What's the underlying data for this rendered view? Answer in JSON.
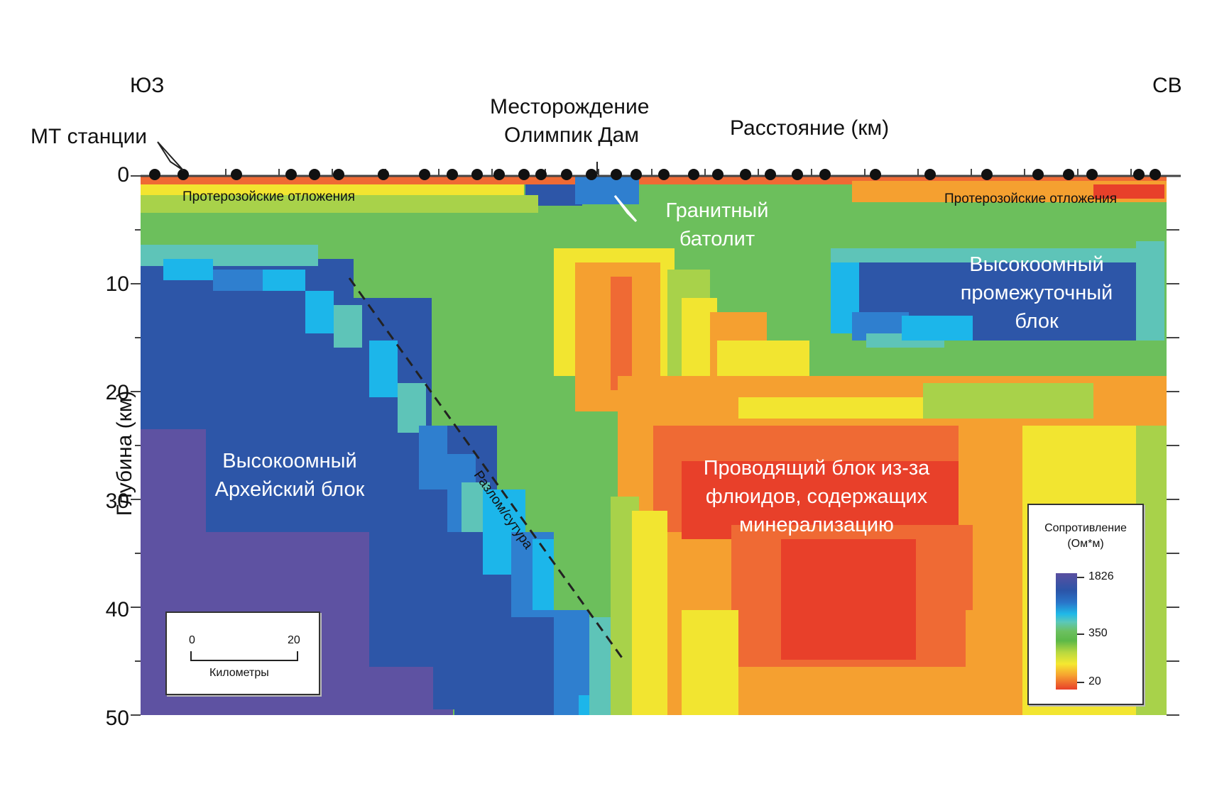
{
  "header": {
    "left_dir": "ЮЗ",
    "right_dir": "СВ",
    "mt_stations": "МТ станции",
    "deposit_line1": "Месторождение",
    "deposit_line2": "Олимпик Дам",
    "distance": "Расстояние (км)"
  },
  "axis": {
    "ylabel": "Глубина (км)",
    "ticks": [
      "0",
      "10",
      "20",
      "30",
      "40",
      "50"
    ],
    "ylim": [
      0,
      50
    ]
  },
  "annotations": {
    "proterozoic_left": "Протерозойские отложения",
    "proterozoic_right": "Протерозойские отложения",
    "granite_line1": "Гранитный",
    "granite_line2": "батолит",
    "high_res_mid_line1": "Высокоомный",
    "high_res_mid_line2": "промежуточный",
    "high_res_mid_line3": "блок",
    "archean_line1": "Высокоомный",
    "archean_line2": "Архейский блок",
    "fault": "Разлом/сутура",
    "conductive_line1": "Проводящий блок из-за",
    "conductive_line2": "флюидов, содержащих",
    "conductive_line3": "минерализацию"
  },
  "scale_bar": {
    "min": "0",
    "max": "20",
    "unit": "Километры"
  },
  "legend": {
    "title_line1": "Сопротивление",
    "title_line2": "(Ом*м)",
    "high": "1826",
    "mid": "350",
    "low": "20"
  },
  "colors": {
    "deep_purple": "#5e52a2",
    "dark_blue": "#2d56a8",
    "blue": "#2f7fcf",
    "cyan": "#1cb6ea",
    "teal": "#5ec4b8",
    "green": "#6cbf5c",
    "light_green": "#a8d24a",
    "yellow": "#f2e530",
    "orange": "#f5a030",
    "red_orange": "#ef6a34",
    "red": "#e8402a"
  }
}
